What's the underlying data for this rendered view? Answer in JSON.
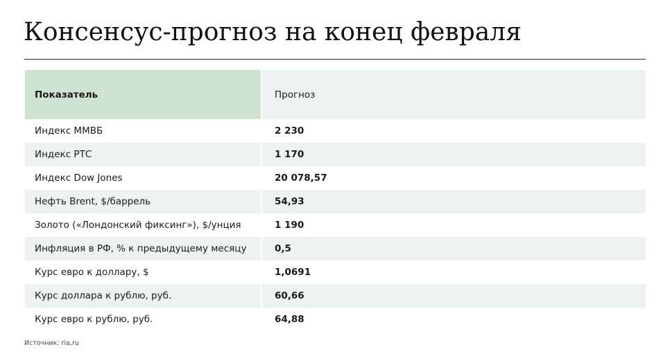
{
  "title": "Консенсус-прогноз на конец февраля",
  "source": "Источник: ria.ru",
  "colors": {
    "header_left": "#d0e2d2",
    "row_stripe": "#edf3ee",
    "rule": "#222222"
  },
  "chart_data": {
    "type": "table",
    "title": "Консенсус-прогноз на конец февраля",
    "columns": [
      "Показатель",
      "Прогноз"
    ],
    "rows": [
      [
        "Индекс ММВБ",
        "2 230"
      ],
      [
        "Индекс РТС",
        "1 170"
      ],
      [
        "Индекс Dow Jones",
        "20 078,57"
      ],
      [
        "Нефть Brent, $/баррель",
        "54,93"
      ],
      [
        "Золото («Лондонский фиксинг»), $/унция",
        "1 190"
      ],
      [
        "Инфляция в РФ, % к предыдущему месяцу",
        "0,5"
      ],
      [
        "Курс евро к доллару, $",
        "1,0691"
      ],
      [
        "Курс доллара к рублю, руб.",
        "60,66"
      ],
      [
        "Курс евро к рублю, руб.",
        "64,88"
      ]
    ]
  }
}
